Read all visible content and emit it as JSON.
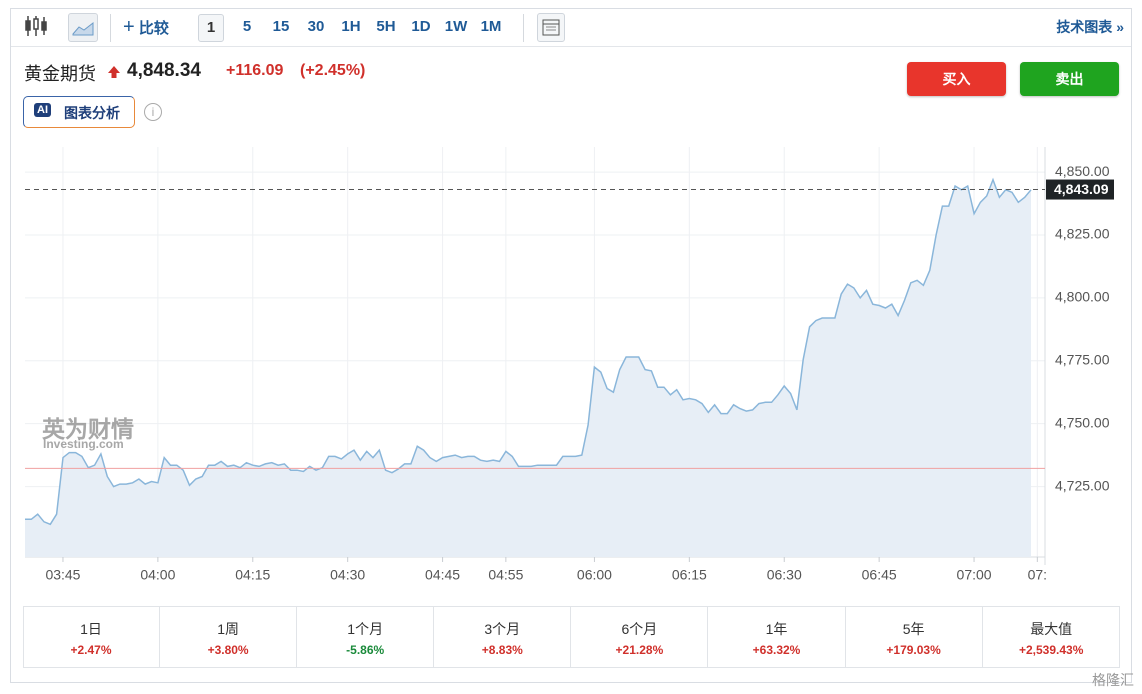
{
  "toolbar": {
    "compare": "比较",
    "intervals": [
      "1",
      "5",
      "15",
      "30",
      "1H",
      "5H",
      "1D",
      "1W",
      "1M"
    ],
    "selected_interval": 0,
    "tech_chart": "技术图表 »"
  },
  "header": {
    "name": "黄金期货",
    "price": "4,848.34",
    "change": "+116.09",
    "change_pct": "(+2.45%)",
    "buy": "买入",
    "sell": "卖出",
    "ai_badge": "AI",
    "ai_label": "图表分析"
  },
  "watermark": {
    "brand": "英为财情",
    "site": "Investing.com"
  },
  "corner_logo": "格隆汇",
  "chart_data": {
    "type": "area",
    "color": "#8ab6da",
    "fill": "#e7eef6",
    "grid": true,
    "ylim": [
      4697,
      4860
    ],
    "yticks": [
      {
        "value": 4725,
        "label": "4,725.00"
      },
      {
        "value": 4750,
        "label": "4,750.00"
      },
      {
        "value": 4775,
        "label": "4,775.00"
      },
      {
        "value": 4800,
        "label": "4,800.00"
      },
      {
        "value": 4825,
        "label": "4,825.00"
      },
      {
        "value": 4850,
        "label": "4,850.00"
      }
    ],
    "price_line": {
      "value": 4843.09,
      "label": "4,843.09"
    },
    "reference_line": 4732.25,
    "categories": [
      null,
      null,
      null,
      null,
      null,
      null,
      "03:45",
      null,
      null,
      null,
      null,
      null,
      null,
      null,
      null,
      null,
      null,
      null,
      null,
      null,
      null,
      "04:00",
      null,
      null,
      null,
      null,
      null,
      null,
      null,
      null,
      null,
      null,
      null,
      null,
      null,
      null,
      "04:15",
      null,
      null,
      null,
      null,
      null,
      null,
      null,
      null,
      null,
      null,
      null,
      null,
      null,
      null,
      "04:30",
      null,
      null,
      null,
      null,
      null,
      null,
      null,
      null,
      null,
      null,
      null,
      null,
      null,
      null,
      "04:45",
      null,
      null,
      null,
      null,
      null,
      null,
      null,
      null,
      null,
      "04:55",
      null,
      null,
      null,
      null,
      null,
      null,
      null,
      null,
      null,
      null,
      null,
      null,
      null,
      "06:00",
      null,
      null,
      null,
      null,
      null,
      null,
      null,
      null,
      null,
      null,
      null,
      null,
      null,
      null,
      "06:15",
      null,
      null,
      null,
      null,
      null,
      null,
      null,
      null,
      null,
      null,
      null,
      null,
      null,
      null,
      "06:30",
      null,
      null,
      null,
      null,
      null,
      null,
      null,
      null,
      null,
      null,
      null,
      null,
      null,
      null,
      "06:45",
      null,
      null,
      null,
      null,
      null,
      null,
      null,
      null,
      null,
      null,
      null,
      null,
      null,
      null,
      "07:00",
      null,
      null,
      null,
      null,
      null,
      null,
      null,
      null,
      null,
      "07:"
    ],
    "values": [
      4712,
      4712,
      4714,
      4711,
      4710,
      4714,
      4736.5,
      4738.5,
      4738.5,
      4737,
      4732.5,
      4733.5,
      4738,
      4729,
      4725,
      4726,
      4726,
      4726.5,
      4728,
      4726,
      4727,
      4726.5,
      4736.5,
      4733.5,
      4733.5,
      4731.5,
      4725.5,
      4728,
      4729,
      4733.5,
      4733.5,
      4735,
      4733,
      4733.5,
      4732.5,
      4734.5,
      4733.5,
      4733,
      4734,
      4734.5,
      4733.5,
      4734,
      4731.5,
      4731.5,
      4731,
      4733,
      4731.5,
      4732.5,
      4737,
      4737,
      4736,
      4738,
      4739.5,
      4735.5,
      4739,
      4736.5,
      4739.5,
      4731.5,
      4730.5,
      4732,
      4734,
      4734,
      4741,
      4739.5,
      4736.5,
      4735,
      4736.5,
      4737,
      4737.5,
      4736.5,
      4737,
      4737,
      4735.5,
      4735,
      4735.5,
      4735,
      4739,
      4737,
      4733,
      4733,
      4733,
      4733.5,
      4733.5,
      4733.5,
      4733.5,
      4737,
      4737,
      4737,
      4737.5,
      4749.5,
      4772.5,
      4770.5,
      4764,
      4762.5,
      4771.5,
      4776.5,
      4776.5,
      4776.5,
      4771.5,
      4771,
      4764.5,
      4764.5,
      4761.5,
      4763.5,
      4759.5,
      4760,
      4759.5,
      4758,
      4754.5,
      4757.5,
      4754,
      4754,
      4757.5,
      4756,
      4755,
      4755.5,
      4758,
      4758.5,
      4758.5,
      4761.5,
      4765,
      4762,
      4755.5,
      4775.5,
      4788.5,
      4791,
      4792,
      4792,
      4792,
      4801.5,
      4805.5,
      4804,
      4800,
      4803,
      4797.5,
      4797,
      4796,
      4797.5,
      4793,
      4799,
      4806,
      4807,
      4805,
      4811,
      4825,
      4836.5,
      4836.5,
      4844.5,
      4843,
      4844.5,
      4833.5,
      4838,
      4840.5,
      4847,
      4840,
      4843,
      4842,
      4838,
      4840,
      4843,
      null
    ]
  },
  "performance": [
    {
      "period": "1日",
      "change": "+2.47%",
      "color": "#d0302b"
    },
    {
      "period": "1周",
      "change": "+3.80%",
      "color": "#d0302b"
    },
    {
      "period": "1个月",
      "change": "-5.86%",
      "color": "#1a8a3a"
    },
    {
      "period": "3个月",
      "change": "+8.83%",
      "color": "#d0302b"
    },
    {
      "period": "6个月",
      "change": "+21.28%",
      "color": "#d0302b"
    },
    {
      "period": "1年",
      "change": "+63.32%",
      "color": "#d0302b"
    },
    {
      "period": "5年",
      "change": "+179.03%",
      "color": "#d0302b"
    },
    {
      "period": "最大值",
      "change": "+2,539.43%",
      "color": "#d0302b"
    }
  ]
}
